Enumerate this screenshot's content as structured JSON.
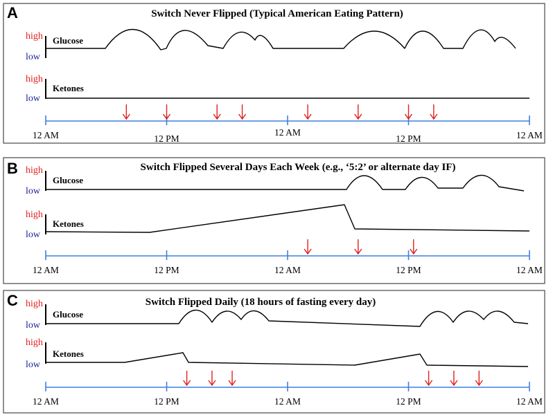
{
  "panels": [
    {
      "letter": "A",
      "title": "Switch Never Flipped (Typical American Eating Pattern)",
      "glucose": {
        "label": "Glucose",
        "high": "high",
        "low": "low"
      },
      "ketones": {
        "label": "Ketones",
        "high": "high",
        "low": "low"
      },
      "ticks": [
        "12 AM",
        "12 PM",
        "12 AM",
        "12 PM",
        "12 AM"
      ],
      "meal_times_hours": [
        8,
        12,
        17,
        19.5,
        26,
        31,
        36,
        38.5
      ]
    },
    {
      "letter": "B",
      "title": "Switch Flipped Several Days Each Week (e.g., ‘5:2’ or alternate day IF)",
      "glucose": {
        "label": "Glucose",
        "high": "high",
        "low": "low"
      },
      "ketones": {
        "label": "Ketones",
        "high": "high",
        "low": "low"
      },
      "ticks": [
        "12 AM",
        "12 PM",
        "12 AM",
        "12 PM",
        "12 AM"
      ],
      "meal_times_hours": [
        26,
        31,
        36.5
      ]
    },
    {
      "letter": "C",
      "title": "Switch Flipped Daily (18 hours of fasting every day)",
      "glucose": {
        "label": "Glucose",
        "high": "high",
        "low": "low"
      },
      "ketones": {
        "label": "Ketones",
        "high": "high",
        "low": "low"
      },
      "ticks": [
        "12 AM",
        "12 PM",
        "12 AM",
        "12 PM",
        "12 AM"
      ],
      "meal_times_hours": [
        14,
        16.5,
        18.5,
        38,
        40.5,
        43
      ]
    }
  ]
}
